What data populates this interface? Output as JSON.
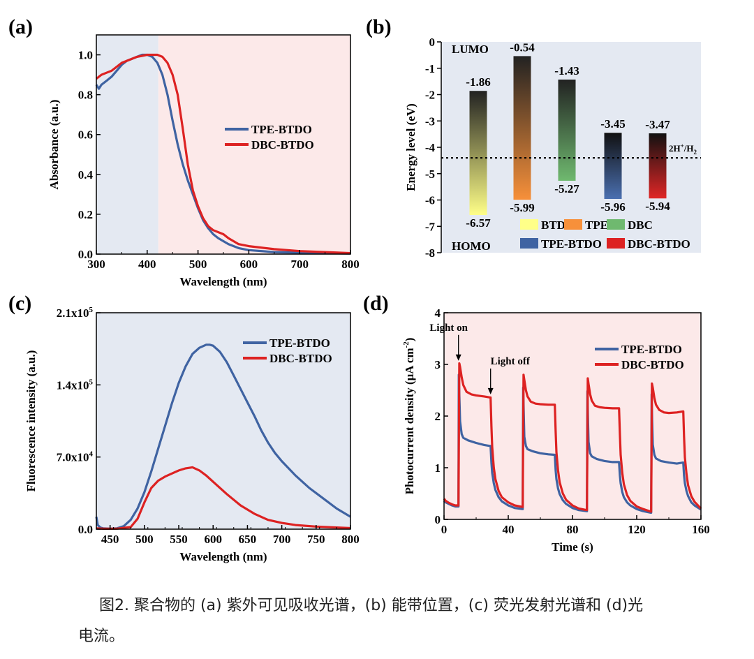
{
  "chart_data": [
    {
      "panel": "(a)",
      "type": "line",
      "xlabel": "Wavelength (nm)",
      "ylabel": "Absorbance (a.u.)",
      "xlim": [
        300,
        800
      ],
      "ylim": [
        0,
        1.1
      ],
      "xticks": [
        "300",
        "400",
        "500",
        "600",
        "700",
        "800"
      ],
      "yticks": [
        "0.0",
        "0.2",
        "0.4",
        "0.6",
        "0.8",
        "1.0"
      ],
      "background_regions": [
        {
          "x0": 300,
          "x1": 422,
          "color": "#e4e9f2"
        },
        {
          "x0": 422,
          "x1": 800,
          "color": "#fce9e9"
        }
      ],
      "legend_position": "center-right",
      "series": [
        {
          "name": "TPE-BTDO",
          "color": "#3f63a2",
          "x": [
            300,
            305,
            310,
            320,
            330,
            340,
            350,
            360,
            370,
            380,
            390,
            400,
            410,
            420,
            430,
            440,
            450,
            460,
            470,
            480,
            490,
            500,
            510,
            520,
            530,
            540,
            560,
            580,
            600,
            650,
            700,
            750,
            800
          ],
          "y": [
            0.85,
            0.83,
            0.85,
            0.87,
            0.89,
            0.92,
            0.95,
            0.97,
            0.98,
            0.99,
            1.0,
            1.0,
            0.99,
            0.96,
            0.9,
            0.8,
            0.67,
            0.55,
            0.45,
            0.37,
            0.3,
            0.23,
            0.17,
            0.13,
            0.1,
            0.08,
            0.05,
            0.03,
            0.02,
            0.01,
            0.007,
            0.005,
            0.003
          ]
        },
        {
          "name": "DBC-BTDO",
          "color": "#dd2222",
          "x": [
            300,
            310,
            320,
            330,
            340,
            350,
            360,
            370,
            380,
            390,
            400,
            410,
            420,
            430,
            440,
            450,
            460,
            470,
            480,
            490,
            500,
            510,
            520,
            530,
            540,
            550,
            560,
            580,
            600,
            650,
            700,
            750,
            800
          ],
          "y": [
            0.88,
            0.9,
            0.91,
            0.92,
            0.94,
            0.96,
            0.97,
            0.98,
            0.99,
            0.995,
            1.0,
            1.0,
            1.0,
            0.99,
            0.96,
            0.9,
            0.8,
            0.63,
            0.45,
            0.32,
            0.24,
            0.18,
            0.14,
            0.12,
            0.11,
            0.1,
            0.08,
            0.05,
            0.04,
            0.025,
            0.015,
            0.01,
            0.005
          ]
        }
      ]
    },
    {
      "panel": "(b)",
      "type": "bar",
      "ylabel": "Energy level (eV)",
      "ylim": [
        -8,
        0
      ],
      "yticks": [
        "0",
        "-1",
        "-2",
        "-3",
        "-4",
        "-5",
        "-6",
        "-7",
        "-8"
      ],
      "background": "#e4e9f2",
      "top_label": "LUMO",
      "bottom_label": "HOMO",
      "reference_line": {
        "value": -4.4,
        "label": "2H",
        "sup": "+",
        "slash": "/H",
        "sub": "2"
      },
      "bars": [
        {
          "name": "BTDO",
          "lumo": -1.86,
          "homo": -6.57,
          "lumo_label": "-1.86",
          "homo_label": "-6.57",
          "top_color": "#222222",
          "bottom_color": "#ffff88",
          "legend_color": "#ffff88"
        },
        {
          "name": "TPE",
          "lumo": -0.54,
          "homo": -5.99,
          "lumo_label": "-0.54",
          "homo_label": "-5.99",
          "top_color": "#222222",
          "bottom_color": "#f7903a",
          "legend_color": "#f7903a"
        },
        {
          "name": "DBC",
          "lumo": -1.43,
          "homo": -5.27,
          "lumo_label": "-1.43",
          "homo_label": "-5.27",
          "top_color": "#222222",
          "bottom_color": "#6fb96f",
          "legend_color": "#6fb96f"
        },
        {
          "name": "TPE-BTDO",
          "lumo": -3.45,
          "homo": -5.96,
          "lumo_label": "-3.45",
          "homo_label": "-5.96",
          "top_color": "#111111",
          "bottom_color": "#4a6fb0",
          "legend_color": "#3f63a2"
        },
        {
          "name": "DBC-BTDO",
          "lumo": -3.47,
          "homo": -5.94,
          "lumo_label": "-3.47",
          "homo_label": "-5.94",
          "top_color": "#111111",
          "bottom_color": "#e02626",
          "legend_color": "#dd2222"
        }
      ]
    },
    {
      "panel": "(c)",
      "type": "line",
      "xlabel": "Wavelength (nm)",
      "ylabel": "Fluorescence intensity (a.u.)",
      "xlim": [
        430,
        800
      ],
      "ylim": [
        0,
        210000
      ],
      "xticks": [
        "450",
        "500",
        "550",
        "600",
        "650",
        "700",
        "750",
        "800"
      ],
      "yticks": [
        {
          "value": 0,
          "base": "0.0",
          "exp": ""
        },
        {
          "value": 70000,
          "base": "7.0x10",
          "exp": "4"
        },
        {
          "value": 140000,
          "base": "1.4x10",
          "exp": "5"
        },
        {
          "value": 210000,
          "base": "2.1x10",
          "exp": "5"
        }
      ],
      "background": "#e4e9f2",
      "legend_position": "top-right",
      "series": [
        {
          "name": "TPE-BTDO",
          "color": "#3f63a2",
          "x": [
            430,
            432,
            436,
            440,
            450,
            460,
            470,
            480,
            490,
            500,
            510,
            520,
            530,
            540,
            550,
            560,
            570,
            580,
            590,
            595,
            600,
            610,
            620,
            630,
            640,
            650,
            660,
            670,
            680,
            690,
            700,
            720,
            740,
            760,
            780,
            800
          ],
          "y": [
            12000,
            4000,
            1500,
            800,
            500,
            800,
            3000,
            9000,
            20000,
            36000,
            56000,
            78000,
            100000,
            122000,
            142000,
            158000,
            170000,
            176000,
            179000,
            179000,
            178000,
            172000,
            162000,
            149000,
            136000,
            123000,
            110000,
            96000,
            84000,
            74000,
            66000,
            52000,
            40000,
            30000,
            20000,
            12000
          ]
        },
        {
          "name": "DBC-BTDO",
          "color": "#dd2222",
          "x": [
            430,
            440,
            460,
            480,
            490,
            500,
            510,
            520,
            530,
            540,
            550,
            560,
            570,
            580,
            590,
            600,
            620,
            640,
            660,
            680,
            700,
            720,
            750,
            800
          ],
          "y": [
            800,
            400,
            500,
            2000,
            10000,
            26000,
            40000,
            47000,
            51000,
            54000,
            57000,
            59000,
            60000,
            57000,
            52000,
            46000,
            34000,
            23000,
            15000,
            9000,
            6000,
            4000,
            2500,
            1000
          ]
        }
      ]
    },
    {
      "panel": "(d)",
      "type": "line",
      "xlabel": "Time (s)",
      "ylabel": "Photocurrent density (μA cm⁻²)",
      "ylabel_main": "Photocurrent density (μA cm",
      "ylabel_sup": "-2",
      "ylabel_end": ")",
      "xlim": [
        0,
        160
      ],
      "ylim": [
        0,
        4
      ],
      "xticks": [
        "0",
        "40",
        "80",
        "120",
        "160"
      ],
      "yticks": [
        "0",
        "1",
        "2",
        "3",
        "4"
      ],
      "background": "#fce9e9",
      "legend_position": "right",
      "annotations": [
        {
          "text": "Light on",
          "x": 9,
          "y": 3.03
        },
        {
          "text": "Light off",
          "x": 29,
          "y": 2.38
        }
      ],
      "series": [
        {
          "name": "TPE-BTDO",
          "color": "#3f63a2",
          "x": [
            0,
            1,
            3,
            5,
            7,
            9,
            9.2,
            9.5,
            10,
            11,
            12,
            15,
            20,
            25,
            28.9,
            29,
            29.5,
            30,
            31,
            32,
            34,
            36,
            40,
            44,
            48.8,
            49,
            49.3,
            49.6,
            50,
            51,
            52,
            55,
            60,
            65,
            68.9,
            69,
            69.5,
            70,
            71,
            72,
            74,
            76,
            80,
            84,
            88.8,
            89,
            89.3,
            89.6,
            90,
            91,
            92,
            95,
            100,
            105,
            108.9,
            109,
            109.5,
            110,
            111,
            112,
            114,
            116,
            120,
            124,
            128.8,
            129,
            129.3,
            129.6,
            130,
            131,
            132,
            135,
            140,
            145,
            148.9,
            149,
            149.5,
            150,
            151,
            152,
            154,
            156,
            160
          ],
          "y": [
            0.36,
            0.33,
            0.3,
            0.27,
            0.25,
            0.25,
            2.8,
            2.4,
            1.9,
            1.65,
            1.58,
            1.53,
            1.48,
            1.44,
            1.42,
            1.42,
            1.1,
            0.9,
            0.7,
            0.57,
            0.43,
            0.35,
            0.27,
            0.22,
            0.2,
            0.2,
            2.55,
            2.1,
            1.6,
            1.42,
            1.36,
            1.32,
            1.28,
            1.26,
            1.25,
            1.25,
            0.95,
            0.78,
            0.6,
            0.49,
            0.37,
            0.3,
            0.22,
            0.18,
            0.16,
            0.16,
            2.48,
            2.0,
            1.5,
            1.28,
            1.22,
            1.17,
            1.13,
            1.11,
            1.11,
            1.11,
            0.85,
            0.7,
            0.53,
            0.43,
            0.33,
            0.27,
            0.2,
            0.16,
            0.13,
            0.13,
            2.42,
            1.9,
            1.45,
            1.25,
            1.18,
            1.13,
            1.1,
            1.08,
            1.1,
            1.1,
            0.85,
            0.7,
            0.55,
            0.45,
            0.33,
            0.27,
            0.19
          ]
        },
        {
          "name": "DBC-BTDO",
          "color": "#dd2222",
          "x": [
            0,
            1,
            3,
            5,
            7,
            9,
            9.5,
            10,
            11,
            12,
            14,
            17,
            20,
            25,
            28.9,
            29,
            29.5,
            30,
            31,
            32,
            34,
            36,
            40,
            44,
            48.8,
            49,
            49.5,
            50,
            51,
            52,
            54,
            57,
            60,
            65,
            68.9,
            69,
            69.5,
            70,
            71,
            72,
            74,
            76,
            80,
            84,
            88.8,
            89,
            89.5,
            90,
            91,
            92,
            94,
            97,
            100,
            105,
            108.9,
            109,
            109.5,
            110,
            111,
            112,
            114,
            116,
            120,
            124,
            128.8,
            129,
            129.5,
            130,
            131,
            132,
            134,
            137,
            140,
            145,
            148.9,
            149,
            149.5,
            150,
            151,
            152,
            154,
            156,
            160
          ],
          "y": [
            0.4,
            0.36,
            0.32,
            0.29,
            0.27,
            0.27,
            3.02,
            2.95,
            2.75,
            2.6,
            2.47,
            2.42,
            2.4,
            2.38,
            2.36,
            2.36,
            1.8,
            1.4,
            1.0,
            0.78,
            0.55,
            0.43,
            0.33,
            0.27,
            0.24,
            0.24,
            2.8,
            2.7,
            2.5,
            2.38,
            2.28,
            2.24,
            2.23,
            2.22,
            2.22,
            2.22,
            1.7,
            1.3,
            0.95,
            0.72,
            0.5,
            0.38,
            0.27,
            0.21,
            0.18,
            0.18,
            2.73,
            2.62,
            2.42,
            2.3,
            2.2,
            2.17,
            2.16,
            2.15,
            2.15,
            2.15,
            1.65,
            1.25,
            0.9,
            0.68,
            0.47,
            0.36,
            0.25,
            0.2,
            0.15,
            0.15,
            2.63,
            2.55,
            2.35,
            2.22,
            2.12,
            2.07,
            2.06,
            2.07,
            2.09,
            2.09,
            1.6,
            1.2,
            0.88,
            0.66,
            0.45,
            0.34,
            0.21
          ]
        }
      ]
    }
  ],
  "caption": {
    "line1": "图2. 聚合物的 (a) 紫外可见吸收光谱，(b) 能带位置，(c) 荧光发射光谱和 (d)光",
    "line2": "电流。"
  }
}
